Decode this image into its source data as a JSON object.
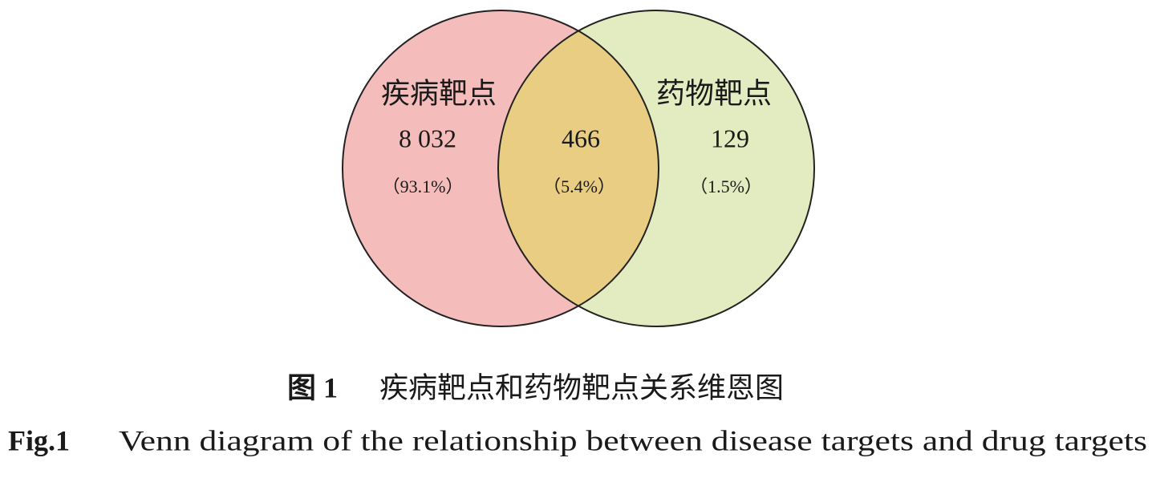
{
  "diagram": {
    "left": {
      "label": "疾病靶点",
      "count": "8 032",
      "percent": "（93.1%）"
    },
    "overlap": {
      "count": "466",
      "percent": "（5.4%）"
    },
    "right": {
      "label": "药物靶点",
      "count": "129",
      "percent": "（1.5%）"
    }
  },
  "caption": {
    "cn_number": "图 1",
    "cn_title": "疾病靶点和药物靶点关系维恩图",
    "en_number": "Fig.1",
    "en_title": "Venn diagram of the relationship between disease targets and drug targets"
  }
}
